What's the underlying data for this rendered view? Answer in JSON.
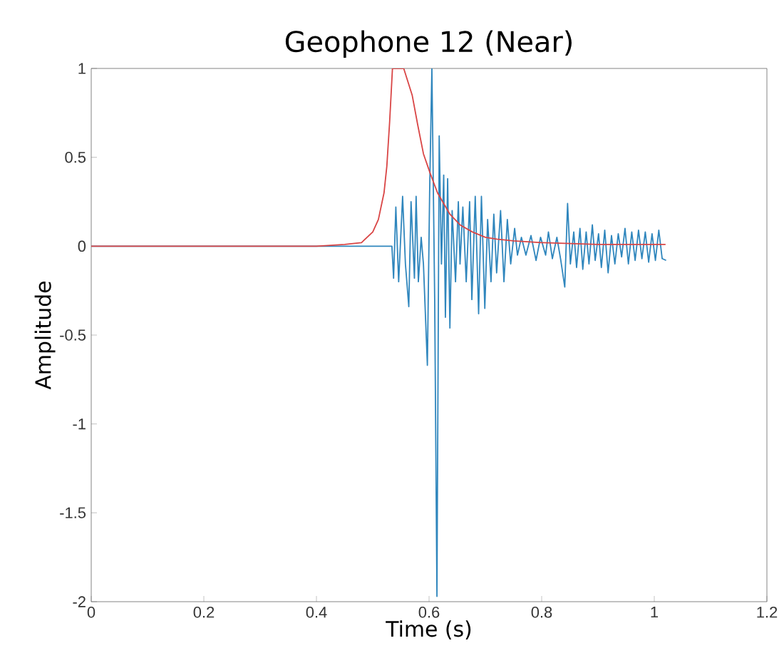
{
  "chart_data": {
    "type": "line",
    "title": "Geophone 12 (Near)",
    "xlabel": "Time (s)",
    "ylabel": "Amplitude",
    "xlim": [
      0,
      1.2
    ],
    "ylim": [
      -2,
      1
    ],
    "xticks": [
      0,
      0.2,
      0.4,
      0.6,
      0.8,
      1,
      1.2
    ],
    "yticks": [
      -2,
      -1.5,
      -1,
      -0.5,
      0,
      0.5,
      1
    ],
    "series": [
      {
        "color": "#2f86bd",
        "x": [
          0,
          0.534,
          0.537,
          0.541,
          0.546,
          0.553,
          0.558,
          0.564,
          0.568,
          0.574,
          0.577,
          0.581,
          0.586,
          0.59,
          0.597,
          0.601,
          0.605,
          0.61,
          0.614,
          0.618,
          0.622,
          0.626,
          0.629,
          0.633,
          0.637,
          0.641,
          0.647,
          0.652,
          0.655,
          0.66,
          0.666,
          0.672,
          0.676,
          0.682,
          0.688,
          0.693,
          0.699,
          0.704,
          0.71,
          0.715,
          0.72,
          0.727,
          0.733,
          0.739,
          0.745,
          0.752,
          0.757,
          0.764,
          0.772,
          0.781,
          0.79,
          0.798,
          0.807,
          0.812,
          0.819,
          0.827,
          0.834,
          0.841,
          0.846,
          0.851,
          0.857,
          0.862,
          0.868,
          0.873,
          0.879,
          0.884,
          0.89,
          0.895,
          0.901,
          0.906,
          0.912,
          0.918,
          0.924,
          0.93,
          0.936,
          0.942,
          0.948,
          0.954,
          0.96,
          0.966,
          0.972,
          0.978,
          0.984,
          0.99,
          0.996,
          1.002,
          1.008,
          1.014,
          1.021
        ],
        "values": [
          0,
          0,
          -0.18,
          0.22,
          -0.2,
          0.28,
          -0.1,
          -0.34,
          0.25,
          -0.18,
          0.28,
          -0.2,
          0.05,
          -0.1,
          -0.67,
          0.3,
          1,
          -0.3,
          -1.97,
          0.62,
          -0.1,
          0.4,
          -0.4,
          0.38,
          -0.46,
          0.2,
          -0.2,
          0.25,
          -0.1,
          0.22,
          -0.2,
          0.25,
          -0.3,
          0.28,
          -0.38,
          0.28,
          -0.35,
          0.15,
          -0.2,
          0.18,
          -0.15,
          0.2,
          -0.2,
          0.15,
          -0.1,
          0.1,
          -0.05,
          0.05,
          -0.05,
          0.06,
          -0.08,
          0.05,
          -0.05,
          0.08,
          -0.07,
          0.05,
          -0.08,
          -0.23,
          0.24,
          -0.1,
          0.08,
          -0.12,
          0.1,
          -0.13,
          0.08,
          -0.1,
          0.12,
          -0.08,
          0.07,
          -0.12,
          0.09,
          -0.15,
          0.06,
          -0.1,
          0.07,
          -0.06,
          0.1,
          -0.1,
          0.08,
          -0.08,
          0.09,
          -0.07,
          0.08,
          -0.09,
          0.07,
          -0.08,
          0.09,
          -0.07,
          -0.08
        ]
      },
      {
        "color": "#d94545",
        "x": [
          0,
          0.2,
          0.4,
          0.45,
          0.48,
          0.5,
          0.51,
          0.52,
          0.525,
          0.53,
          0.535,
          0.555,
          0.56,
          0.57,
          0.58,
          0.59,
          0.602,
          0.615,
          0.637,
          0.655,
          0.677,
          0.7,
          0.72,
          0.75,
          0.8,
          0.9,
          1.02
        ],
        "values": [
          0,
          0,
          0,
          0.01,
          0.02,
          0.08,
          0.15,
          0.3,
          0.45,
          0.7,
          1,
          1,
          0.95,
          0.85,
          0.68,
          0.52,
          0.41,
          0.3,
          0.18,
          0.12,
          0.08,
          0.05,
          0.04,
          0.03,
          0.02,
          0.01,
          0.01
        ]
      }
    ]
  }
}
